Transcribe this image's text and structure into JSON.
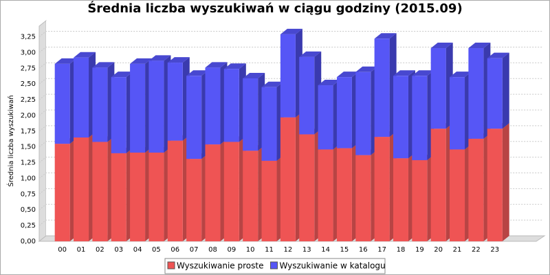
{
  "chart_data": {
    "type": "bar3d_stacked",
    "title": "Średnia liczba wyszukiwań w ciągu godziny (2015.09)",
    "y_label": "Średnia liczba wyszukiwań",
    "categories": [
      "00",
      "01",
      "02",
      "03",
      "04",
      "05",
      "06",
      "07",
      "08",
      "09",
      "10",
      "11",
      "12",
      "13",
      "14",
      "15",
      "16",
      "17",
      "18",
      "19",
      "20",
      "21",
      "22",
      "23"
    ],
    "series": [
      {
        "name": "Wyszukiwanie proste",
        "color": "#ef5454",
        "side_color": "#b84444",
        "top_color": "#d04a4a",
        "values": [
          1.55,
          1.65,
          1.58,
          1.4,
          1.41,
          1.41,
          1.6,
          1.31,
          1.54,
          1.58,
          1.44,
          1.28,
          1.97,
          1.7,
          1.46,
          1.48,
          1.37,
          1.66,
          1.32,
          1.29,
          1.79,
          1.46,
          1.63,
          1.79
        ]
      },
      {
        "name": "Wyszukiwanie w katalogu",
        "color": "#5656f6",
        "side_color": "#3a3aae",
        "top_color": "#4848d0",
        "values": [
          1.27,
          1.27,
          1.18,
          1.21,
          1.41,
          1.46,
          1.24,
          1.32,
          1.22,
          1.16,
          1.15,
          1.17,
          1.32,
          1.23,
          1.02,
          1.13,
          1.32,
          1.56,
          1.31,
          1.34,
          1.28,
          1.15,
          1.44,
          1.12
        ]
      }
    ],
    "ylim": [
      0,
      3.42
    ],
    "yticks": [
      {
        "value": 0,
        "label": "0,00"
      },
      {
        "value": 0.25,
        "label": "0,25"
      },
      {
        "value": 0.5,
        "label": "0,50"
      },
      {
        "value": 0.75,
        "label": "0,75"
      },
      {
        "value": 1,
        "label": "1,00"
      },
      {
        "value": 1.25,
        "label": "1,25"
      },
      {
        "value": 1.5,
        "label": "1,50"
      },
      {
        "value": 1.75,
        "label": "1,75"
      },
      {
        "value": 2,
        "label": "2,00"
      },
      {
        "value": 2.25,
        "label": "2,25"
      },
      {
        "value": 2.5,
        "label": "2,50"
      },
      {
        "value": 2.75,
        "label": "2,75"
      },
      {
        "value": 3,
        "label": "3,00"
      },
      {
        "value": 3.25,
        "label": "3,25"
      }
    ],
    "grid": true
  }
}
